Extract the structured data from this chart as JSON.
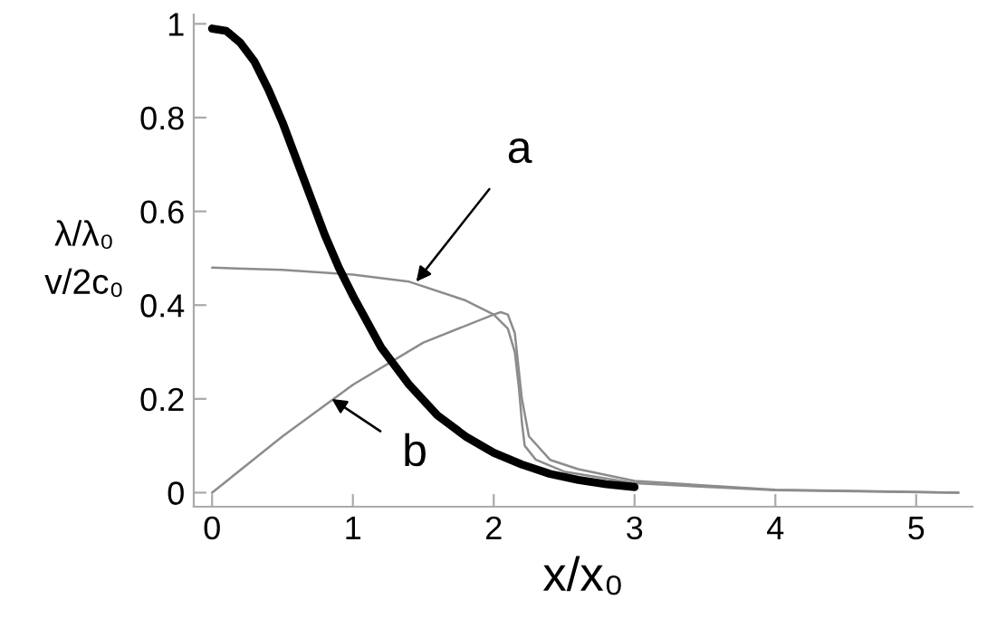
{
  "chart_data": {
    "type": "line",
    "xlabel": "x/x₀",
    "ylabel": "λ/λ₀\nv/2c₀",
    "xlim": [
      -0.13,
      5.4
    ],
    "ylim": [
      -0.03,
      1.02
    ],
    "xticks": [
      0,
      1,
      2,
      3,
      4,
      5
    ],
    "yticks": [
      0,
      0.2,
      0.4,
      0.6,
      0.8,
      1
    ],
    "grid": false,
    "legend": false,
    "marker": "none",
    "line_style": "solid",
    "series": [
      {
        "color": "#000000",
        "x": [
          0,
          0.1,
          0.2,
          0.3,
          0.4,
          0.5,
          0.6,
          0.7,
          0.8,
          0.9,
          1.0,
          1.2,
          1.4,
          1.6,
          1.8,
          2.0,
          2.2,
          2.4,
          2.6,
          2.8,
          3.0
        ],
        "values": [
          0.99,
          0.985,
          0.96,
          0.92,
          0.86,
          0.79,
          0.71,
          0.63,
          0.55,
          0.48,
          0.42,
          0.31,
          0.23,
          0.165,
          0.12,
          0.085,
          0.06,
          0.04,
          0.027,
          0.018,
          0.012
        ]
      },
      {
        "color": "#8c8c8c",
        "x": [
          0,
          0.5,
          1.0,
          1.4,
          1.8,
          2.0,
          2.1,
          2.15,
          2.18,
          2.2,
          2.22,
          2.3,
          2.5,
          3.0,
          4.0,
          5.3
        ],
        "values": [
          0.48,
          0.475,
          0.465,
          0.45,
          0.41,
          0.38,
          0.35,
          0.3,
          0.22,
          0.15,
          0.1,
          0.07,
          0.045,
          0.02,
          0.005,
          0.0
        ]
      },
      {
        "color": "#8c8c8c",
        "x": [
          0,
          0.5,
          1.0,
          1.5,
          2.0,
          2.05,
          2.1,
          2.15,
          2.2,
          2.25,
          2.4,
          2.6,
          3.0,
          4.0,
          5.3
        ],
        "values": [
          0,
          0.12,
          0.23,
          0.32,
          0.38,
          0.385,
          0.38,
          0.34,
          0.2,
          0.12,
          0.07,
          0.05,
          0.025,
          0.006,
          0.0
        ]
      }
    ],
    "annotations": [
      {
        "text": "a",
        "x": 1.45,
        "y": 0.45
      },
      {
        "text": "b",
        "x": 0.85,
        "y": 0.2
      }
    ]
  }
}
